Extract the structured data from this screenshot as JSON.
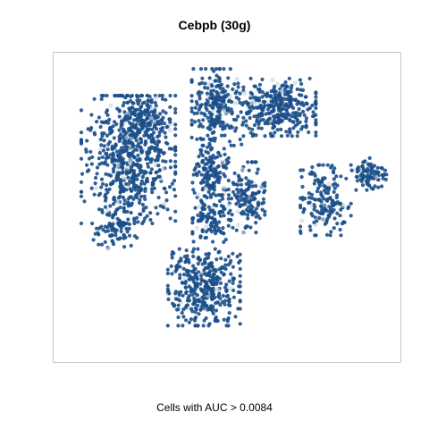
{
  "chart_data": {
    "type": "scatter",
    "title": "Cebpb (30g)",
    "caption": "Cells with AUC > 0.0084",
    "xlabel": "",
    "ylabel": "",
    "grid": false,
    "point_color": "#1b4f8a",
    "faint_color": "#c9d3e0",
    "clusters": [
      {
        "name": "left",
        "cx": 0.2,
        "cy": 0.34,
        "rx": 0.13,
        "ry": 0.2,
        "n": 620
      },
      {
        "name": "left-lower",
        "cx": 0.16,
        "cy": 0.57,
        "rx": 0.06,
        "ry": 0.07,
        "n": 90
      },
      {
        "name": "upper-left-arm",
        "cx": 0.25,
        "cy": 0.2,
        "rx": 0.07,
        "ry": 0.07,
        "n": 150
      },
      {
        "name": "upper-middle",
        "cx": 0.47,
        "cy": 0.16,
        "rx": 0.07,
        "ry": 0.12,
        "n": 240
      },
      {
        "name": "upper-right",
        "cx": 0.66,
        "cy": 0.16,
        "rx": 0.1,
        "ry": 0.09,
        "n": 330
      },
      {
        "name": "center",
        "cx": 0.45,
        "cy": 0.38,
        "rx": 0.05,
        "ry": 0.1,
        "n": 150
      },
      {
        "name": "center-right",
        "cx": 0.56,
        "cy": 0.47,
        "rx": 0.05,
        "ry": 0.11,
        "n": 140
      },
      {
        "name": "right",
        "cx": 0.8,
        "cy": 0.48,
        "rx": 0.07,
        "ry": 0.11,
        "n": 170
      },
      {
        "name": "far-right",
        "cx": 0.93,
        "cy": 0.39,
        "rx": 0.05,
        "ry": 0.05,
        "n": 90
      },
      {
        "name": "center-lower",
        "cx": 0.45,
        "cy": 0.55,
        "rx": 0.05,
        "ry": 0.08,
        "n": 110
      },
      {
        "name": "bottom",
        "cx": 0.43,
        "cy": 0.78,
        "rx": 0.1,
        "ry": 0.12,
        "n": 380
      }
    ]
  }
}
